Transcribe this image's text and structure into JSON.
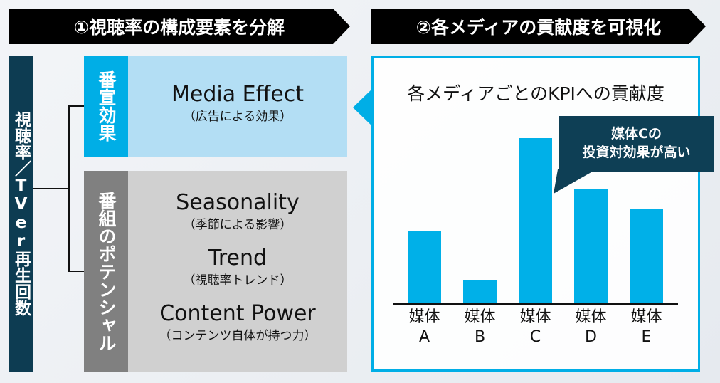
{
  "left_banner": "①視聴率の構成要素を分解",
  "right_banner": "②各メディアの貢献度を可視化",
  "root_label": "視聴率／TVer再生回数",
  "media_box": {
    "side_label": "番宣効果",
    "title": "Media Effect",
    "subtitle": "（広告による効果）"
  },
  "potential_box": {
    "side_label": "番組のポテンシャル",
    "items": [
      {
        "title": "Seasonality",
        "subtitle": "（季節による影響）"
      },
      {
        "title": "Trend",
        "subtitle": "（視聴率トレンド）"
      },
      {
        "title": "Content Power",
        "subtitle": "（コンテンツ自体が持つ力）"
      }
    ]
  },
  "chart_data": {
    "type": "bar",
    "title": "各メディアごとのKPIへの貢献度",
    "categories": [
      [
        "媒体",
        "A"
      ],
      [
        "媒体",
        "B"
      ],
      [
        "媒体",
        "C"
      ],
      [
        "媒体",
        "D"
      ],
      [
        "媒体",
        "E"
      ]
    ],
    "values": [
      44,
      14,
      100,
      69,
      57
    ],
    "ylim": [
      0,
      100
    ],
    "grid": false,
    "bar_color": "#00b0e8",
    "annotation": [
      "媒体Cの",
      "投資対効果が高い"
    ]
  },
  "colors": {
    "dark_teal": "#0d3c52",
    "blue": "#00aee6",
    "light_blue": "#b3def4",
    "gray": "#808080",
    "light_gray": "#d0d0d0"
  }
}
